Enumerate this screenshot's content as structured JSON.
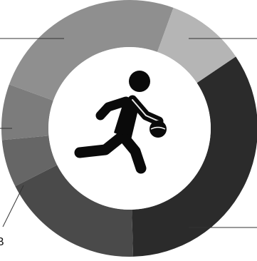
{
  "chart_data": {
    "type": "pie",
    "variant": "donut",
    "title": "",
    "categories": [
      "",
      "",
      "",
      "",
      "",
      "B"
    ],
    "values": [
      34,
      18,
      6,
      7,
      25,
      10
    ],
    "colors": [
      "#2b2b2b",
      "#4a4a4a",
      "#666666",
      "#7c7c7c",
      "#8f8f8f",
      "#b5b5b5"
    ],
    "slices": [
      {
        "label": "",
        "value": 34,
        "color": "#2b2b2b"
      },
      {
        "label": "",
        "value": 18,
        "color": "#4a4a4a"
      },
      {
        "label": "",
        "value": 6,
        "color": "#666666"
      },
      {
        "label": "",
        "value": 7,
        "color": "#7c7c7c"
      },
      {
        "label": "",
        "value": 25,
        "color": "#8f8f8f"
      },
      {
        "label": "B",
        "value": 10,
        "color": "#b5b5b5"
      }
    ],
    "legend": "none",
    "center_icon": "basketball-player-icon"
  }
}
